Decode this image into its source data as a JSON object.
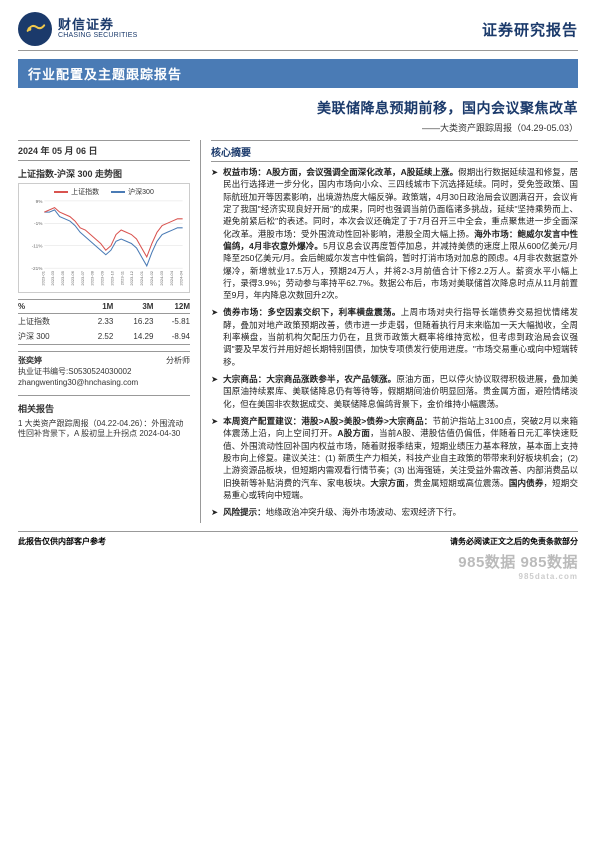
{
  "header": {
    "logo_cn": "财信证券",
    "logo_en": "CHASING SECURITIES",
    "doc_type": "证券研究报告"
  },
  "banner": "行业配置及主题跟踪报告",
  "title": {
    "main": "美联储降息预期前移，国内会议聚焦改革",
    "sub": "——大类资产跟踪周报（04.29-05.03）"
  },
  "left": {
    "date": "2024 年 05 月 06 日",
    "chart_title": "上证指数-沪深 300 走势图",
    "chart": {
      "legend": [
        {
          "label": "上证指数",
          "color": "#d9534f"
        },
        {
          "label": "沪深300",
          "color": "#4a7bb5"
        }
      ],
      "y_ticks": [
        "9%",
        "-1%",
        "-11%",
        "-21%"
      ],
      "x_ticks": [
        "2023-01",
        "2023-03",
        "2023-05",
        "2023-06",
        "2023-07",
        "2023-08",
        "2023-09",
        "2023-10",
        "2023-11",
        "2023-12",
        "2024-01",
        "2024-02",
        "2024-03",
        "2024-04",
        "2024-04"
      ],
      "series": {
        "sh": [
          4,
          5,
          6,
          4,
          3,
          2,
          0,
          -3,
          -4,
          -6,
          -8,
          -10,
          -13,
          -11,
          -6,
          -4,
          -5,
          -6,
          -8,
          -12,
          -16,
          -10,
          -5,
          -2,
          -1,
          0,
          1,
          1
        ],
        "hs300": [
          4,
          4,
          5,
          2,
          1,
          0,
          -2,
          -5,
          -7,
          -9,
          -11,
          -13,
          -15,
          -13,
          -9,
          -8,
          -9,
          -10,
          -12,
          -16,
          -20,
          -14,
          -9,
          -6,
          -5,
          -4,
          -3,
          -3
        ]
      },
      "y_range": [
        -21,
        9
      ],
      "grid_color": "#dddddd",
      "background_color": "#ffffff"
    },
    "table": {
      "head": [
        "%",
        "1M",
        "3M",
        "12M"
      ],
      "rows": [
        [
          "上证指数",
          "2.33",
          "16.23",
          "-5.81"
        ],
        [
          "沪深 300",
          "2.52",
          "14.29",
          "-8.94"
        ]
      ]
    },
    "analyst": {
      "name": "张奕婷",
      "role": "分析师",
      "cert_label": "执业证书编号:",
      "cert": "S0530524030002",
      "email": "zhangwenting30@hnchasing.com"
    },
    "related": {
      "title": "相关报告",
      "items": [
        "1 大类资产跟踪周报（04.22-04.26）：外围流动性回补背景下，A 股初显上升拐点 2024-04-30"
      ]
    }
  },
  "summary": {
    "title": "核心摘要",
    "bullets": [
      {
        "lead": "权益市场：A股方面，会议强调全面深化改革，A股延续上涨。",
        "body": "假期出行数据延续温和修复，居民出行选择进一步分化，国内市场向小众、三四线城市下沉选择延续。同时，受免签政策、国际航班加开等因素影响，出境游热度大幅反弹。政策端，4月30日政治局会议圆满召开，会议肯定了我国\"经济实现良好开局\"的成果，同时也强调当前仍面临诸多挑战，延续\"坚持乘势而上、避免前紧后松\"的表述。同时，本次会议还确定了于7月召开三中全会，重点聚焦进一步全面深化改革。港股市场：受外围流动性回补影响，港股全周大幅上扬。",
        "lead2": "海外市场：鲍威尔发言中性偏鸽，4月非农意外爆冷。",
        "body2": "5月议息会议再度暂停加息，并减持美债的速度上限从600亿美元/月降至250亿美元/月。会后鲍威尔发言中性偏鸽，暂时打消市场对加息的顾虑。4月非农数据意外爆冷，新增就业17.5万人，预期24万人，并将2-3月前值合计下修2.2万人。薪资水平小幅上行，录得3.9%；劳动参与率持平62.7%。数据公布后，市场对美联储首次降息时点从11月前置至9月，年内降息次数回升2次。"
      },
      {
        "lead": "债券市场：多空因素交织下，利率横盘震荡。",
        "body": "上周市场对央行指导长端债券交易担忧情绪发酵，叠加对地产政策预期改善，债市进一步走弱，但随着执行月末来临加一天大幅抛收，全周利率横盘，当前机构欠配压力仍在，且货币政策大概率将维持宽松，但考虑到政治局会议强调\"要及早发行并用好超长期特别国债，加快专项债发行使用进度。\"市场交易重心或向中短端转移。"
      },
      {
        "lead": "大宗商品：大宗商品涨跌参半，农产品领涨。",
        "body": "原油方面，巴以停火协议取得积极进展，叠加美国原油持续累库、美联储降息仍有等待等，假期期间油价明显回落。贵金属方面，避险情绪淡化，但在美国非农数据成交、美联储降息偏鸽背景下，金价维持小幅震荡。"
      },
      {
        "lead": "本周资产配置建议：港股>A股>美股>债券>大宗商品：",
        "body": "节前沪指站上3100点，突破2月以来箱体震荡上沿，向上空间打开。",
        "lead2": "A股方面",
        "body2": "，当前A股、港股估值仍偏低，伴随着日元汇率快速贬值、外围流动性回补国内权益市场，随着财报季结束，短期业绩压力基本释放，基本面上支持股市向上修复。建议关注：(1) 新质生产力相关，科技产业自主政策的带带来利好板块机会；(2) 上游资源品板块，但短期内需观看行情节奏；(3) 出海强链，关注受益外需改善、内部消费品以旧换新等补贴消费的汽车、家电板块。",
        "lead3": "大宗方面",
        "body3": "，贵金属短期或高位震荡。",
        "lead4": "国内债券",
        "body4": "，短期交易重心或转向中短端。"
      },
      {
        "lead": "风险提示：",
        "body": "地缘政治冲突升级、海外市场波动、宏观经济下行。"
      }
    ]
  },
  "footer": {
    "left": "此报告仅供内部客户参考",
    "right": "请务必阅读正文之后的免责条款部分"
  },
  "watermark": {
    "main": "985数据",
    "sub": "985data.com"
  }
}
